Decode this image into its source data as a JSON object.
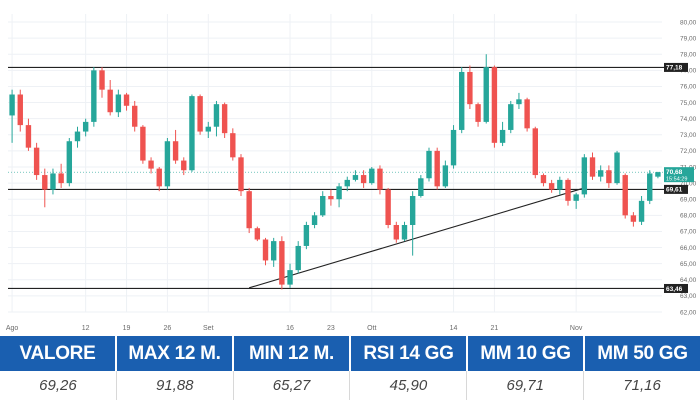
{
  "chart_data": {
    "type": "candlestick",
    "colors": {
      "up": "#26a69a",
      "down": "#ef5350",
      "line": "#222222",
      "current": "#26a69a"
    },
    "y_ticks": [
      "80,00",
      "79,00",
      "78,00",
      "77,00",
      "76,00",
      "75,00",
      "74,00",
      "73,00",
      "72,00",
      "71,00",
      "70,00",
      "69,00",
      "68,00",
      "67,00",
      "66,00",
      "65,00",
      "64,00",
      "63,00",
      "62,00"
    ],
    "ylim": [
      62,
      80
    ],
    "x_ticks": [
      {
        "label": "Ago",
        "i": 0
      },
      {
        "label": "12",
        "i": 9
      },
      {
        "label": "19",
        "i": 14
      },
      {
        "label": "26",
        "i": 19
      },
      {
        "label": "Set",
        "i": 24
      },
      {
        "label": "16",
        "i": 34
      },
      {
        "label": "23",
        "i": 39
      },
      {
        "label": "Ott",
        "i": 44
      },
      {
        "label": "14",
        "i": 54
      },
      {
        "label": "21",
        "i": 59
      },
      {
        "label": "Nov",
        "i": 69
      }
    ],
    "levels": [
      {
        "label": "77,18",
        "y": 77.18,
        "bg": "#222222",
        "fg": "#ffffff"
      },
      {
        "label": "69,61",
        "y": 69.61,
        "bg": "#222222",
        "fg": "#ffffff"
      },
      {
        "label": "63,46",
        "y": 63.46,
        "bg": "#222222",
        "fg": "#ffffff"
      }
    ],
    "current": {
      "label": "70,68",
      "time": "15:54:29",
      "y": 70.68
    },
    "trendline": {
      "from": [
        29,
        63.5
      ],
      "to": [
        70,
        69.7
      ]
    },
    "candles": [
      [
        74.2,
        75.8,
        72.5,
        75.5
      ],
      [
        75.5,
        75.8,
        73.2,
        73.6
      ],
      [
        73.6,
        74.0,
        72.0,
        72.2
      ],
      [
        72.2,
        72.5,
        70.2,
        70.5
      ],
      [
        70.5,
        70.9,
        68.5,
        69.6
      ],
      [
        69.6,
        70.9,
        69.3,
        70.6
      ],
      [
        70.6,
        71.2,
        69.7,
        70.0
      ],
      [
        70.0,
        72.8,
        69.8,
        72.6
      ],
      [
        72.6,
        73.5,
        72.2,
        73.2
      ],
      [
        73.2,
        74.0,
        72.9,
        73.8
      ],
      [
        73.8,
        77.2,
        73.5,
        77.0
      ],
      [
        77.0,
        77.2,
        75.3,
        75.8
      ],
      [
        75.8,
        76.4,
        74.2,
        74.4
      ],
      [
        74.4,
        75.8,
        74.1,
        75.5
      ],
      [
        75.5,
        75.6,
        74.5,
        74.8
      ],
      [
        74.8,
        75.1,
        73.2,
        73.5
      ],
      [
        73.5,
        73.6,
        71.2,
        71.4
      ],
      [
        71.4,
        71.6,
        70.6,
        70.9
      ],
      [
        70.9,
        71.0,
        69.5,
        69.8
      ],
      [
        69.8,
        72.8,
        69.6,
        72.6
      ],
      [
        72.6,
        73.3,
        71.2,
        71.4
      ],
      [
        71.4,
        71.6,
        70.5,
        70.8
      ],
      [
        70.8,
        75.5,
        70.7,
        75.4
      ],
      [
        75.4,
        75.5,
        73.0,
        73.2
      ],
      [
        73.2,
        73.8,
        72.8,
        73.5
      ],
      [
        73.5,
        75.1,
        72.9,
        74.9
      ],
      [
        74.9,
        75.0,
        72.8,
        73.1
      ],
      [
        73.1,
        73.4,
        71.4,
        71.6
      ],
      [
        71.6,
        71.8,
        69.2,
        69.5
      ],
      [
        69.5,
        69.7,
        66.9,
        67.2
      ],
      [
        67.2,
        67.3,
        66.4,
        66.5
      ],
      [
        66.5,
        66.6,
        64.9,
        65.2
      ],
      [
        65.2,
        66.6,
        64.8,
        66.4
      ],
      [
        66.4,
        66.7,
        63.4,
        63.7
      ],
      [
        63.7,
        65.0,
        63.5,
        64.6
      ],
      [
        64.6,
        66.4,
        64.4,
        66.1
      ],
      [
        66.1,
        67.6,
        65.9,
        67.4
      ],
      [
        67.4,
        68.2,
        67.2,
        68.0
      ],
      [
        68.0,
        69.5,
        67.9,
        69.2
      ],
      [
        69.2,
        69.6,
        68.6,
        69.0
      ],
      [
        69.0,
        70.0,
        68.5,
        69.8
      ],
      [
        69.8,
        70.4,
        69.5,
        70.2
      ],
      [
        70.2,
        70.8,
        70.1,
        70.5
      ],
      [
        70.5,
        70.8,
        69.7,
        70.0
      ],
      [
        70.0,
        71.0,
        69.9,
        70.9
      ],
      [
        70.9,
        71.1,
        69.3,
        69.6
      ],
      [
        69.6,
        69.7,
        67.2,
        67.4
      ],
      [
        67.4,
        67.6,
        66.3,
        66.5
      ],
      [
        66.5,
        67.6,
        66.4,
        67.4
      ],
      [
        67.4,
        69.5,
        65.5,
        69.2
      ],
      [
        69.2,
        70.5,
        69.1,
        70.3
      ],
      [
        70.3,
        72.2,
        70.1,
        72.0
      ],
      [
        72.0,
        72.2,
        69.6,
        69.8
      ],
      [
        69.8,
        71.4,
        69.7,
        71.1
      ],
      [
        71.1,
        73.6,
        70.9,
        73.3
      ],
      [
        73.3,
        77.2,
        73.1,
        76.9
      ],
      [
        76.9,
        77.3,
        74.6,
        74.9
      ],
      [
        74.9,
        75.0,
        73.5,
        73.8
      ],
      [
        73.8,
        78.0,
        73.7,
        77.2
      ],
      [
        77.2,
        77.3,
        72.2,
        72.5
      ],
      [
        72.5,
        73.8,
        72.3,
        73.3
      ],
      [
        73.3,
        75.1,
        73.1,
        74.9
      ],
      [
        74.9,
        75.6,
        74.6,
        75.2
      ],
      [
        75.2,
        75.3,
        73.2,
        73.4
      ],
      [
        73.4,
        73.5,
        70.3,
        70.5
      ],
      [
        70.5,
        70.6,
        69.8,
        70.0
      ],
      [
        70.0,
        70.2,
        69.4,
        69.6
      ],
      [
        69.6,
        70.4,
        69.3,
        70.2
      ],
      [
        70.2,
        70.3,
        68.6,
        68.9
      ],
      [
        68.9,
        69.4,
        68.4,
        69.3
      ],
      [
        69.3,
        71.8,
        69.1,
        71.6
      ],
      [
        71.6,
        71.9,
        70.2,
        70.4
      ],
      [
        70.4,
        71.1,
        70.1,
        70.8
      ],
      [
        70.8,
        71.1,
        69.7,
        70.0
      ],
      [
        70.0,
        72.0,
        69.9,
        71.9
      ],
      [
        70.5,
        70.6,
        67.8,
        68.0
      ],
      [
        68.0,
        68.2,
        67.3,
        67.6
      ],
      [
        67.6,
        69.2,
        67.4,
        68.9
      ],
      [
        68.9,
        70.8,
        68.7,
        70.6
      ],
      [
        70.4,
        70.7,
        70.3,
        70.68
      ]
    ]
  },
  "stats": {
    "headers": [
      "VALORE",
      "MAX 12 M.",
      "MIN 12 M.",
      "RSI 14 GG",
      "MM 10 GG",
      "MM 50 GG"
    ],
    "values": [
      "69,26",
      "91,88",
      "65,27",
      "45,90",
      "69,71",
      "71,16"
    ]
  }
}
